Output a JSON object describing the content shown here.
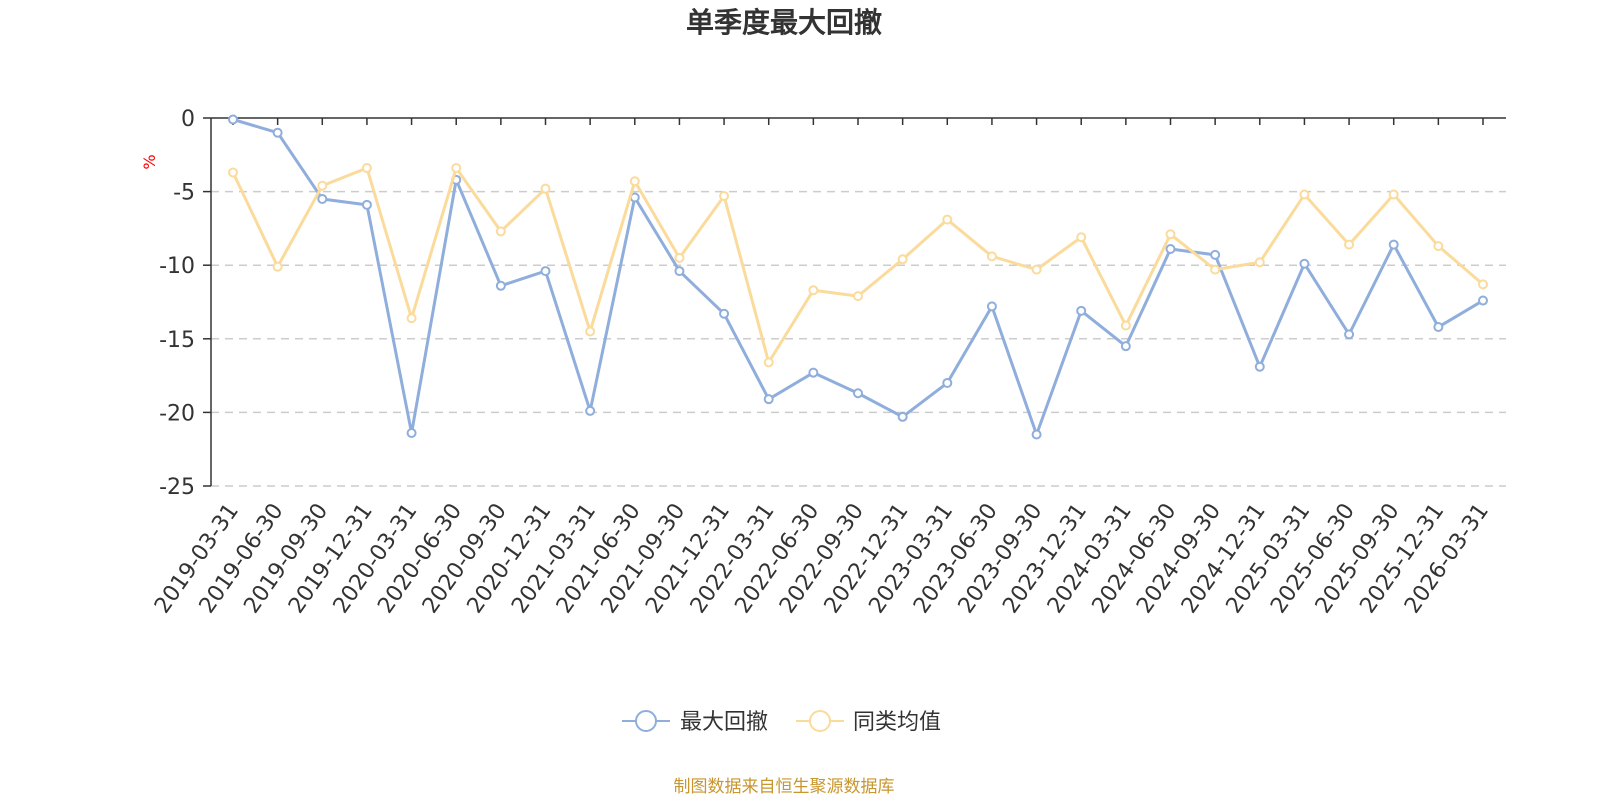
{
  "chart_data": {
    "type": "line",
    "title": "单季度最大回撤",
    "ylabel": "%",
    "ylim": [
      -25,
      0
    ],
    "yticks": [
      0,
      -5,
      -10,
      -15,
      -20,
      -25
    ],
    "grid": true,
    "legend_position": "bottom",
    "categories": [
      "2019-03-31",
      "2019-06-30",
      "2019-09-30",
      "2019-12-31",
      "2020-03-31",
      "2020-06-30",
      "2020-09-30",
      "2020-12-31",
      "2021-03-31",
      "2021-06-30",
      "2021-09-30",
      "2021-12-31",
      "2022-03-31",
      "2022-06-30",
      "2022-09-30",
      "2022-12-31",
      "2023-03-31",
      "2023-06-30",
      "2023-09-30",
      "2023-12-31",
      "2024-03-31",
      "2024-06-30",
      "2024-09-30",
      "2024-12-31",
      "2025-03-31",
      "2025-06-30",
      "2025-09-30",
      "2025-12-31",
      "2026-03-31"
    ],
    "series": [
      {
        "name": "最大回撤",
        "color": "#8faedc",
        "values": [
          -0.1,
          -1.0,
          -5.5,
          -5.9,
          -21.4,
          -4.2,
          -11.4,
          -10.4,
          -19.9,
          -5.4,
          -10.4,
          -13.3,
          -19.1,
          -17.3,
          -18.7,
          -20.3,
          -18.0,
          -12.8,
          -21.5,
          -13.1,
          -15.5,
          -8.9,
          -9.3,
          -16.9,
          -9.9,
          -14.7,
          -8.6,
          -14.2,
          -12.4
        ]
      },
      {
        "name": "同类均值",
        "color": "#fbdb9c",
        "values": [
          -3.7,
          -10.1,
          -4.6,
          -3.4,
          -13.6,
          -3.4,
          -7.7,
          -4.8,
          -14.5,
          -4.3,
          -9.5,
          -5.3,
          -16.6,
          -11.7,
          -12.1,
          -9.6,
          -6.9,
          -9.4,
          -10.3,
          -8.1,
          -14.1,
          -7.9,
          -10.3,
          -9.8,
          -5.2,
          -8.6,
          -5.2,
          -8.7,
          -11.3
        ]
      }
    ]
  },
  "footer": {
    "source_text": "制图数据来自恒生聚源数据库",
    "source_color": "#c8962e"
  }
}
